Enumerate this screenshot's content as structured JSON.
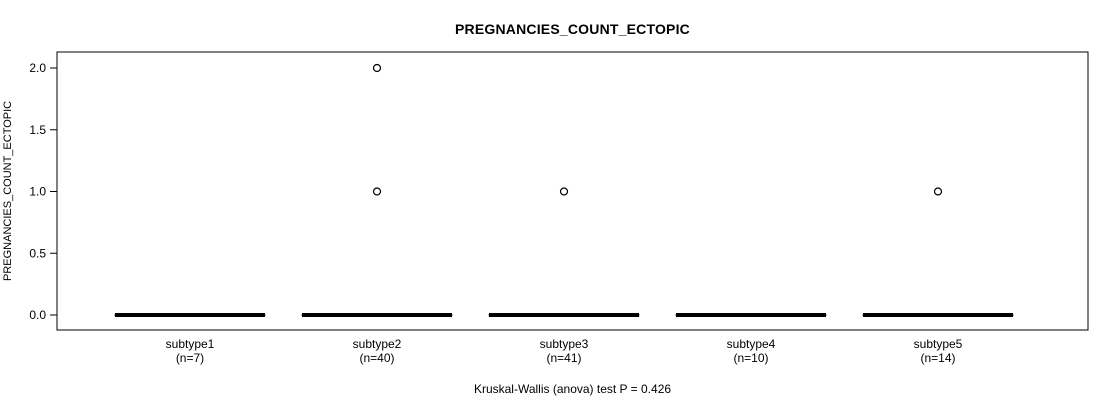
{
  "chart_data": {
    "type": "boxplot",
    "title": "PREGNANCIES_COUNT_ECTOPIC",
    "ylabel": "PREGNANCIES_COUNT_ECTOPIC",
    "footer": "Kruskal-Wallis (anova) test P = 0.426",
    "ylim": [
      0.0,
      2.0
    ],
    "yticks": [
      0.0,
      0.5,
      1.0,
      1.5,
      2.0
    ],
    "ytick_labels": [
      "0.0",
      "0.5",
      "1.0",
      "1.5",
      "2.0"
    ],
    "grid": false,
    "legend": "none",
    "groups": [
      {
        "label": "subtype1",
        "n": 7,
        "n_label": "(n=7)",
        "median": 0,
        "q1": 0,
        "q3": 0,
        "whisker_low": 0,
        "whisker_high": 0,
        "outliers": []
      },
      {
        "label": "subtype2",
        "n": 40,
        "n_label": "(n=40)",
        "median": 0,
        "q1": 0,
        "q3": 0,
        "whisker_low": 0,
        "whisker_high": 0,
        "outliers": [
          1.0,
          2.0
        ]
      },
      {
        "label": "subtype3",
        "n": 41,
        "n_label": "(n=41)",
        "median": 0,
        "q1": 0,
        "q3": 0,
        "whisker_low": 0,
        "whisker_high": 0,
        "outliers": [
          1.0
        ]
      },
      {
        "label": "subtype4",
        "n": 10,
        "n_label": "(n=10)",
        "median": 0,
        "q1": 0,
        "q3": 0,
        "whisker_low": 0,
        "whisker_high": 0,
        "outliers": []
      },
      {
        "label": "subtype5",
        "n": 14,
        "n_label": "(n=14)",
        "median": 0,
        "q1": 0,
        "q3": 0,
        "whisker_low": 0,
        "whisker_high": 0,
        "outliers": [
          1.0
        ]
      }
    ],
    "colors": {
      "box": "#000000",
      "outlier_fill": "#ffffff",
      "axis": "#000000",
      "background": "#ffffff"
    }
  }
}
